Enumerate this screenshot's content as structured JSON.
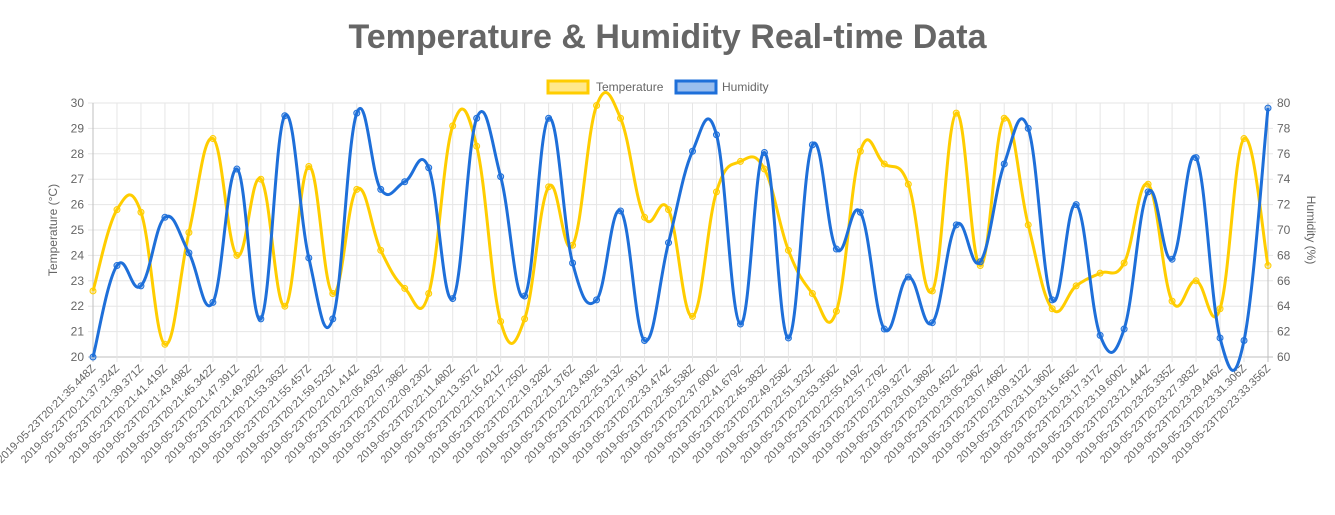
{
  "chart_data": {
    "type": "line",
    "title": "Temperature & Humidity Real-time Data",
    "ylabel": "Temperature (°C)",
    "y2label": "Humidity (%)",
    "ylim": [
      20,
      30
    ],
    "y2lim": [
      60,
      80
    ],
    "yticks": [
      "20",
      "21",
      "22",
      "23",
      "24",
      "25",
      "26",
      "27",
      "28",
      "29",
      "30"
    ],
    "y2ticks": [
      "60",
      "62",
      "64",
      "66",
      "68",
      "70",
      "72",
      "74",
      "76",
      "78",
      "80"
    ],
    "legend_position": "top",
    "grid": true,
    "categories": [
      "2019-05-23T20:21:35.448Z",
      "2019-05-23T20:21:37.324Z",
      "2019-05-23T20:21:39.371Z",
      "2019-05-23T20:21:41.419Z",
      "2019-05-23T20:21:43.498Z",
      "2019-05-23T20:21:45.342Z",
      "2019-05-23T20:21:47.391Z",
      "2019-05-23T20:21:49.282Z",
      "2019-05-23T20:21:53.363Z",
      "2019-05-23T20:21:55.457Z",
      "2019-05-23T20:21:59.523Z",
      "2019-05-23T20:22:01.414Z",
      "2019-05-23T20:22:05.493Z",
      "2019-05-23T20:22:07.386Z",
      "2019-05-23T20:22:09.230Z",
      "2019-05-23T20:22:11.480Z",
      "2019-05-23T20:22:13.357Z",
      "2019-05-23T20:22:15.421Z",
      "2019-05-23T20:22:17.250Z",
      "2019-05-23T20:22:19.328Z",
      "2019-05-23T20:22:21.376Z",
      "2019-05-23T20:22:23.439Z",
      "2019-05-23T20:22:25.313Z",
      "2019-05-23T20:22:27.361Z",
      "2019-05-23T20:22:33.474Z",
      "2019-05-23T20:22:35.538Z",
      "2019-05-23T20:22:37.600Z",
      "2019-05-23T20:22:41.679Z",
      "2019-05-23T20:22:45.383Z",
      "2019-05-23T20:22:49.258Z",
      "2019-05-23T20:22:51.323Z",
      "2019-05-23T20:22:53.356Z",
      "2019-05-23T20:22:55.419Z",
      "2019-05-23T20:22:57.279Z",
      "2019-05-23T20:22:59.327Z",
      "2019-05-23T20:23:01.389Z",
      "2019-05-23T20:23:03.452Z",
      "2019-05-23T20:23:05.296Z",
      "2019-05-23T20:23:07.468Z",
      "2019-05-23T20:23:09.312Z",
      "2019-05-23T20:23:11.360Z",
      "2019-05-23T20:23:15.456Z",
      "2019-05-23T20:23:17.317Z",
      "2019-05-23T20:23:19.600Z",
      "2019-05-23T20:23:21.444Z",
      "2019-05-23T20:23:25.335Z",
      "2019-05-23T20:23:27.383Z",
      "2019-05-23T20:23:29.446Z",
      "2019-05-23T20:23:31.306Z",
      "2019-05-23T20:23:33.356Z"
    ],
    "series": [
      {
        "name": "Temperature",
        "axis": "left",
        "color": "#FFCD00",
        "values": [
          22.6,
          25.8,
          25.7,
          20.5,
          24.9,
          28.6,
          24.0,
          27.0,
          22.0,
          27.5,
          22.5,
          26.6,
          24.2,
          22.7,
          22.5,
          29.1,
          28.3,
          21.4,
          21.5,
          26.7,
          24.4,
          29.9,
          29.4,
          25.5,
          25.8,
          21.6,
          26.5,
          27.7,
          27.4,
          24.2,
          22.5,
          21.8,
          28.1,
          27.6,
          26.8,
          22.6,
          29.6,
          23.6,
          29.4,
          25.2,
          21.9,
          22.8,
          23.3,
          23.7,
          26.8,
          22.2,
          23.0,
          21.9,
          28.6,
          23.6
        ]
      },
      {
        "name": "Humidity",
        "axis": "right",
        "color": "#1E6FD9",
        "values": [
          60.0,
          67.2,
          65.6,
          71.0,
          68.2,
          64.3,
          74.8,
          63.0,
          79.0,
          67.8,
          63.0,
          79.2,
          73.2,
          73.8,
          74.9,
          64.6,
          78.8,
          74.2,
          64.8,
          78.8,
          67.4,
          64.5,
          71.5,
          61.3,
          69.0,
          76.2,
          77.5,
          62.6,
          76.1,
          61.5,
          76.7,
          68.5,
          71.4,
          62.2,
          66.3,
          62.7,
          70.4,
          67.5,
          75.2,
          78.0,
          64.5,
          72.0,
          61.7,
          62.2,
          73.0,
          67.7,
          75.7,
          61.5,
          61.3,
          79.6
        ]
      }
    ]
  }
}
